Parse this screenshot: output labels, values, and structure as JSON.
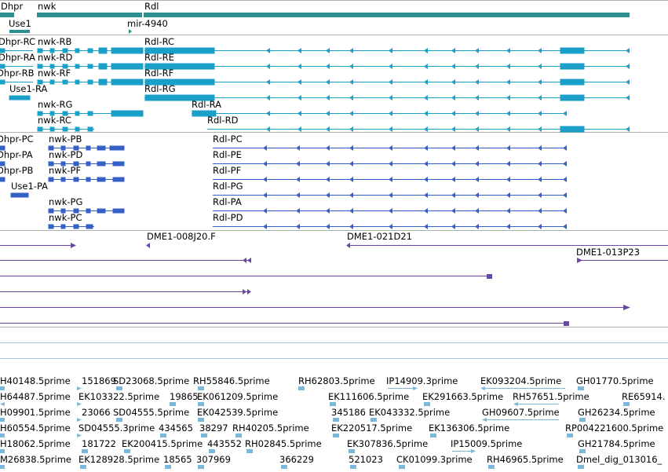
{
  "colors": {
    "teal": "#2b9090",
    "cyan": "#1aa0c8",
    "blue": "#3560c8",
    "purple": "#6a4aa0",
    "lightblue": "#7ab8da",
    "hairline": "#a8c8e0",
    "separator": "#b0b0b0"
  },
  "tracks": {
    "genes": {
      "items": [
        {
          "label": "Dhpr"
        },
        {
          "label": "nwk"
        },
        {
          "label": "Rdl"
        },
        {
          "label": "Use1"
        },
        {
          "label": "mir-4940"
        }
      ]
    },
    "transcripts": {
      "items": [
        {
          "label": "Dhpr-RC"
        },
        {
          "label": "nwk-RB"
        },
        {
          "label": "Rdl-RC"
        },
        {
          "label": "Dhpr-RA"
        },
        {
          "label": "nwk-RD"
        },
        {
          "label": "Rdl-RE"
        },
        {
          "label": "Dhpr-RB"
        },
        {
          "label": "nwk-RF"
        },
        {
          "label": "Rdl-RF"
        },
        {
          "label": "Use1-RA"
        },
        {
          "label": "Rdl-RG"
        },
        {
          "label": "nwk-RG"
        },
        {
          "label": "Rdl-RA"
        },
        {
          "label": "nwk-RC"
        },
        {
          "label": "Rdl-RD"
        }
      ]
    },
    "proteins": {
      "items": [
        {
          "label": "Dhpr-PC"
        },
        {
          "label": "nwk-PB"
        },
        {
          "label": "Rdl-PC"
        },
        {
          "label": "Dhpr-PA"
        },
        {
          "label": "nwk-PD"
        },
        {
          "label": "Rdl-PE"
        },
        {
          "label": "Dhpr-PB"
        },
        {
          "label": "nwk-PF"
        },
        {
          "label": "Rdl-PF"
        },
        {
          "label": "Use1-PA"
        },
        {
          "label": "Rdl-PG"
        },
        {
          "label": "nwk-PG"
        },
        {
          "label": "Rdl-PA"
        },
        {
          "label": "nwk-PC"
        },
        {
          "label": "Rdl-PD"
        }
      ]
    },
    "clones": {
      "items": [
        {
          "label": "DME1-008J20.F"
        },
        {
          "label": "DME1-021D21"
        },
        {
          "label": "DME1-013P23"
        }
      ]
    },
    "ests": {
      "items": [
        {
          "label": "H40148.5prime"
        },
        {
          "label": "151869"
        },
        {
          "label": "SD23068.5prime"
        },
        {
          "label": "RH55846.5prime"
        },
        {
          "label": "RH62803.5prime"
        },
        {
          "label": "IP14909.3prime"
        },
        {
          "label": "EK093204.5prime"
        },
        {
          "label": "GH01770.5prime"
        },
        {
          "label": "H64487.5prime"
        },
        {
          "label": "EK103322.5prime"
        },
        {
          "label": "19865"
        },
        {
          "label": "EK061209.5prime"
        },
        {
          "label": "EK111606.5prime"
        },
        {
          "label": "EK291663.5prime"
        },
        {
          "label": "RH57651.5prime"
        },
        {
          "label": "RE65914."
        },
        {
          "label": "H09901.5prime"
        },
        {
          "label": "23066"
        },
        {
          "label": "SD04555.5prime"
        },
        {
          "label": "EK042539.5prime"
        },
        {
          "label": "345186"
        },
        {
          "label": "EK043332.5prime"
        },
        {
          "label": "GH09607.5prime"
        },
        {
          "label": "GH26234.5prime"
        },
        {
          "label": "H60554.5prime"
        },
        {
          "label": "SD04555.3prime"
        },
        {
          "label": "434565"
        },
        {
          "label": "38297"
        },
        {
          "label": "RH40205.5prime"
        },
        {
          "label": "EK220517.5prime"
        },
        {
          "label": "EK136306.5prime"
        },
        {
          "label": "RP004221600.5prime"
        },
        {
          "label": "H18062.5prime"
        },
        {
          "label": "181722"
        },
        {
          "label": "EK200415.5prime"
        },
        {
          "label": "443552"
        },
        {
          "label": "RH02845.5prime"
        },
        {
          "label": "EK307836.5prime"
        },
        {
          "label": "IP15009.5prime"
        },
        {
          "label": "GH21784.5prime"
        },
        {
          "label": "M26838.5prime"
        },
        {
          "label": "EK128928.5prime"
        },
        {
          "label": "18565"
        },
        {
          "label": "307969"
        },
        {
          "label": "366229"
        },
        {
          "label": "521023"
        },
        {
          "label": "CK01099.3prime"
        },
        {
          "label": "RH46965.5prime"
        },
        {
          "label": "Dmel_dig_013016_"
        }
      ]
    }
  }
}
